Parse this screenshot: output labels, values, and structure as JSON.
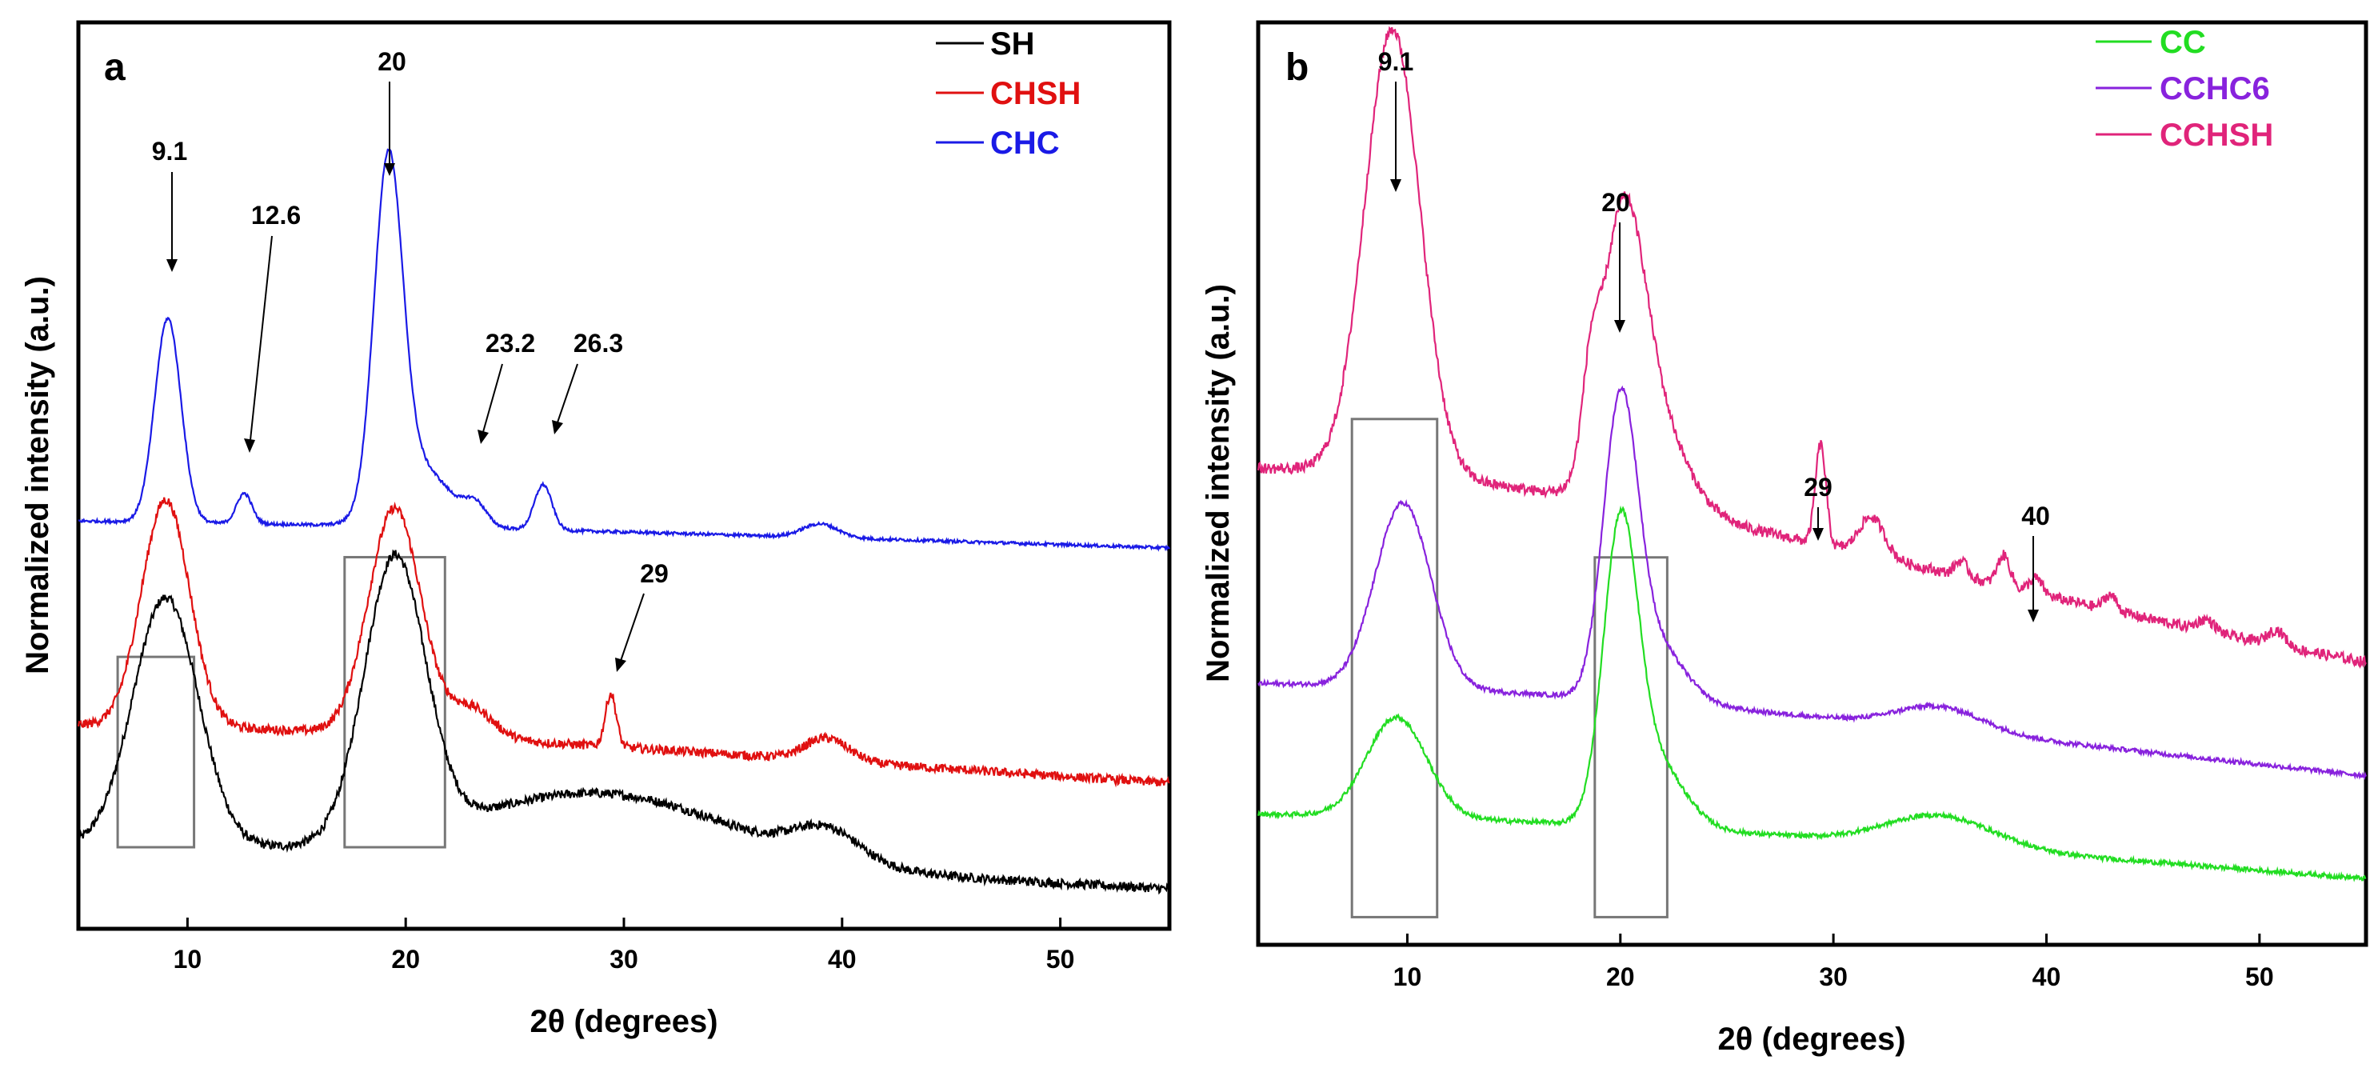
{
  "chart_data": [
    {
      "type": "line",
      "panel_label": "a",
      "xlabel": "2θ (degrees)",
      "ylabel": "Normalized intensity (a.u.)",
      "xlim": [
        5,
        55
      ],
      "ylim": [
        0,
        1.2
      ],
      "xticks": [
        10,
        20,
        30,
        40,
        50
      ],
      "legend": "top-right",
      "series": [
        {
          "name": "SH",
          "color": "#000000",
          "offset": 0.0,
          "baseline": 0.02,
          "peaks": [
            [
              9.0,
              0.33,
              1.5
            ],
            [
              19.5,
              0.37,
              1.4
            ],
            [
              29.0,
              0.09,
              6.0
            ],
            [
              39.3,
              0.04,
              1.5
            ]
          ],
          "bg": [
            0.07,
            0.003
          ],
          "noise": 0.012
        },
        {
          "name": "CHSH",
          "color": "#e01010",
          "offset": 0.16,
          "baseline": 0.0,
          "peaks": [
            [
              9.0,
              0.3,
              1.1
            ],
            [
              19.5,
              0.3,
              1.2
            ],
            [
              23.0,
              0.04,
              1.0
            ],
            [
              29.4,
              0.07,
              0.25
            ],
            [
              39.3,
              0.03,
              1.0
            ]
          ],
          "bg": [
            0.09,
            0.004
          ],
          "noise": 0.012
        },
        {
          "name": "CHC",
          "color": "#1a1ae6",
          "offset": 0.48,
          "baseline": 0.0,
          "peaks": [
            [
              9.1,
              0.27,
              0.6
            ],
            [
              12.6,
              0.04,
              0.35
            ],
            [
              19.2,
              0.45,
              0.65
            ],
            [
              20.6,
              0.08,
              1.4
            ],
            [
              23.2,
              0.025,
              0.5
            ],
            [
              26.3,
              0.06,
              0.4
            ],
            [
              39.0,
              0.018,
              0.8
            ]
          ],
          "bg": [
            0.04,
            0.002
          ],
          "noise": 0.004
        }
      ],
      "annotations": [
        "9.1",
        "12.6",
        "20",
        "23.2",
        "26.3",
        "29"
      ],
      "boxes": [
        [
          6.8,
          10.3
        ],
        [
          17.2,
          21.8
        ]
      ]
    },
    {
      "type": "line",
      "panel_label": "b",
      "xlabel": "2θ (degrees)",
      "ylabel": "Normalized intensity (a.u.)",
      "xlim": [
        3,
        55
      ],
      "ylim": [
        0,
        1.2
      ],
      "xticks": [
        10,
        20,
        30,
        40,
        50
      ],
      "legend": "top-right",
      "series": [
        {
          "name": "CC",
          "color": "#22dd22",
          "offset": 0.0,
          "baseline": 0.02,
          "peaks": [
            [
              9.5,
              0.13,
              1.4
            ],
            [
              20.0,
              0.36,
              0.8
            ],
            [
              21.5,
              0.09,
              1.4
            ],
            [
              35.0,
              0.04,
              2.5
            ]
          ],
          "bg": [
            0.13,
            0.0025
          ],
          "noise": 0.006
        },
        {
          "name": "CCHC6",
          "color": "#8822dd",
          "offset": 0.14,
          "baseline": 0.0,
          "peaks": [
            [
              9.8,
              0.24,
              1.3
            ],
            [
              20.0,
              0.36,
              0.8
            ],
            [
              21.5,
              0.08,
              1.4
            ],
            [
              35.0,
              0.03,
              2.0
            ]
          ],
          "bg": [
            0.18,
            0.003
          ],
          "noise": 0.006
        },
        {
          "name": "CCHSH",
          "color": "#e0247a",
          "offset": 0.27,
          "baseline": 0.0,
          "peaks": [
            [
              9.3,
              0.58,
              1.3
            ],
            [
              18.6,
              0.1,
              0.4
            ],
            [
              20.1,
              0.32,
              1.0
            ],
            [
              21.5,
              0.12,
              1.5
            ],
            [
              29.4,
              0.13,
              0.25
            ],
            [
              31.8,
              0.05,
              0.6
            ],
            [
              36.0,
              0.02,
              0.3
            ],
            [
              38.0,
              0.04,
              0.3
            ],
            [
              39.5,
              0.02,
              0.3
            ],
            [
              43.0,
              0.02,
              0.3
            ],
            [
              47.5,
              0.015,
              0.4
            ],
            [
              50.8,
              0.02,
              0.4
            ]
          ],
          "bg": [
            0.33,
            0.0045
          ],
          "noise": 0.014
        }
      ],
      "annotations": [
        "9.1",
        "20",
        "29",
        "40"
      ],
      "boxes": [
        [
          7.4,
          11.4
        ],
        [
          18.8,
          22.2
        ]
      ]
    }
  ]
}
